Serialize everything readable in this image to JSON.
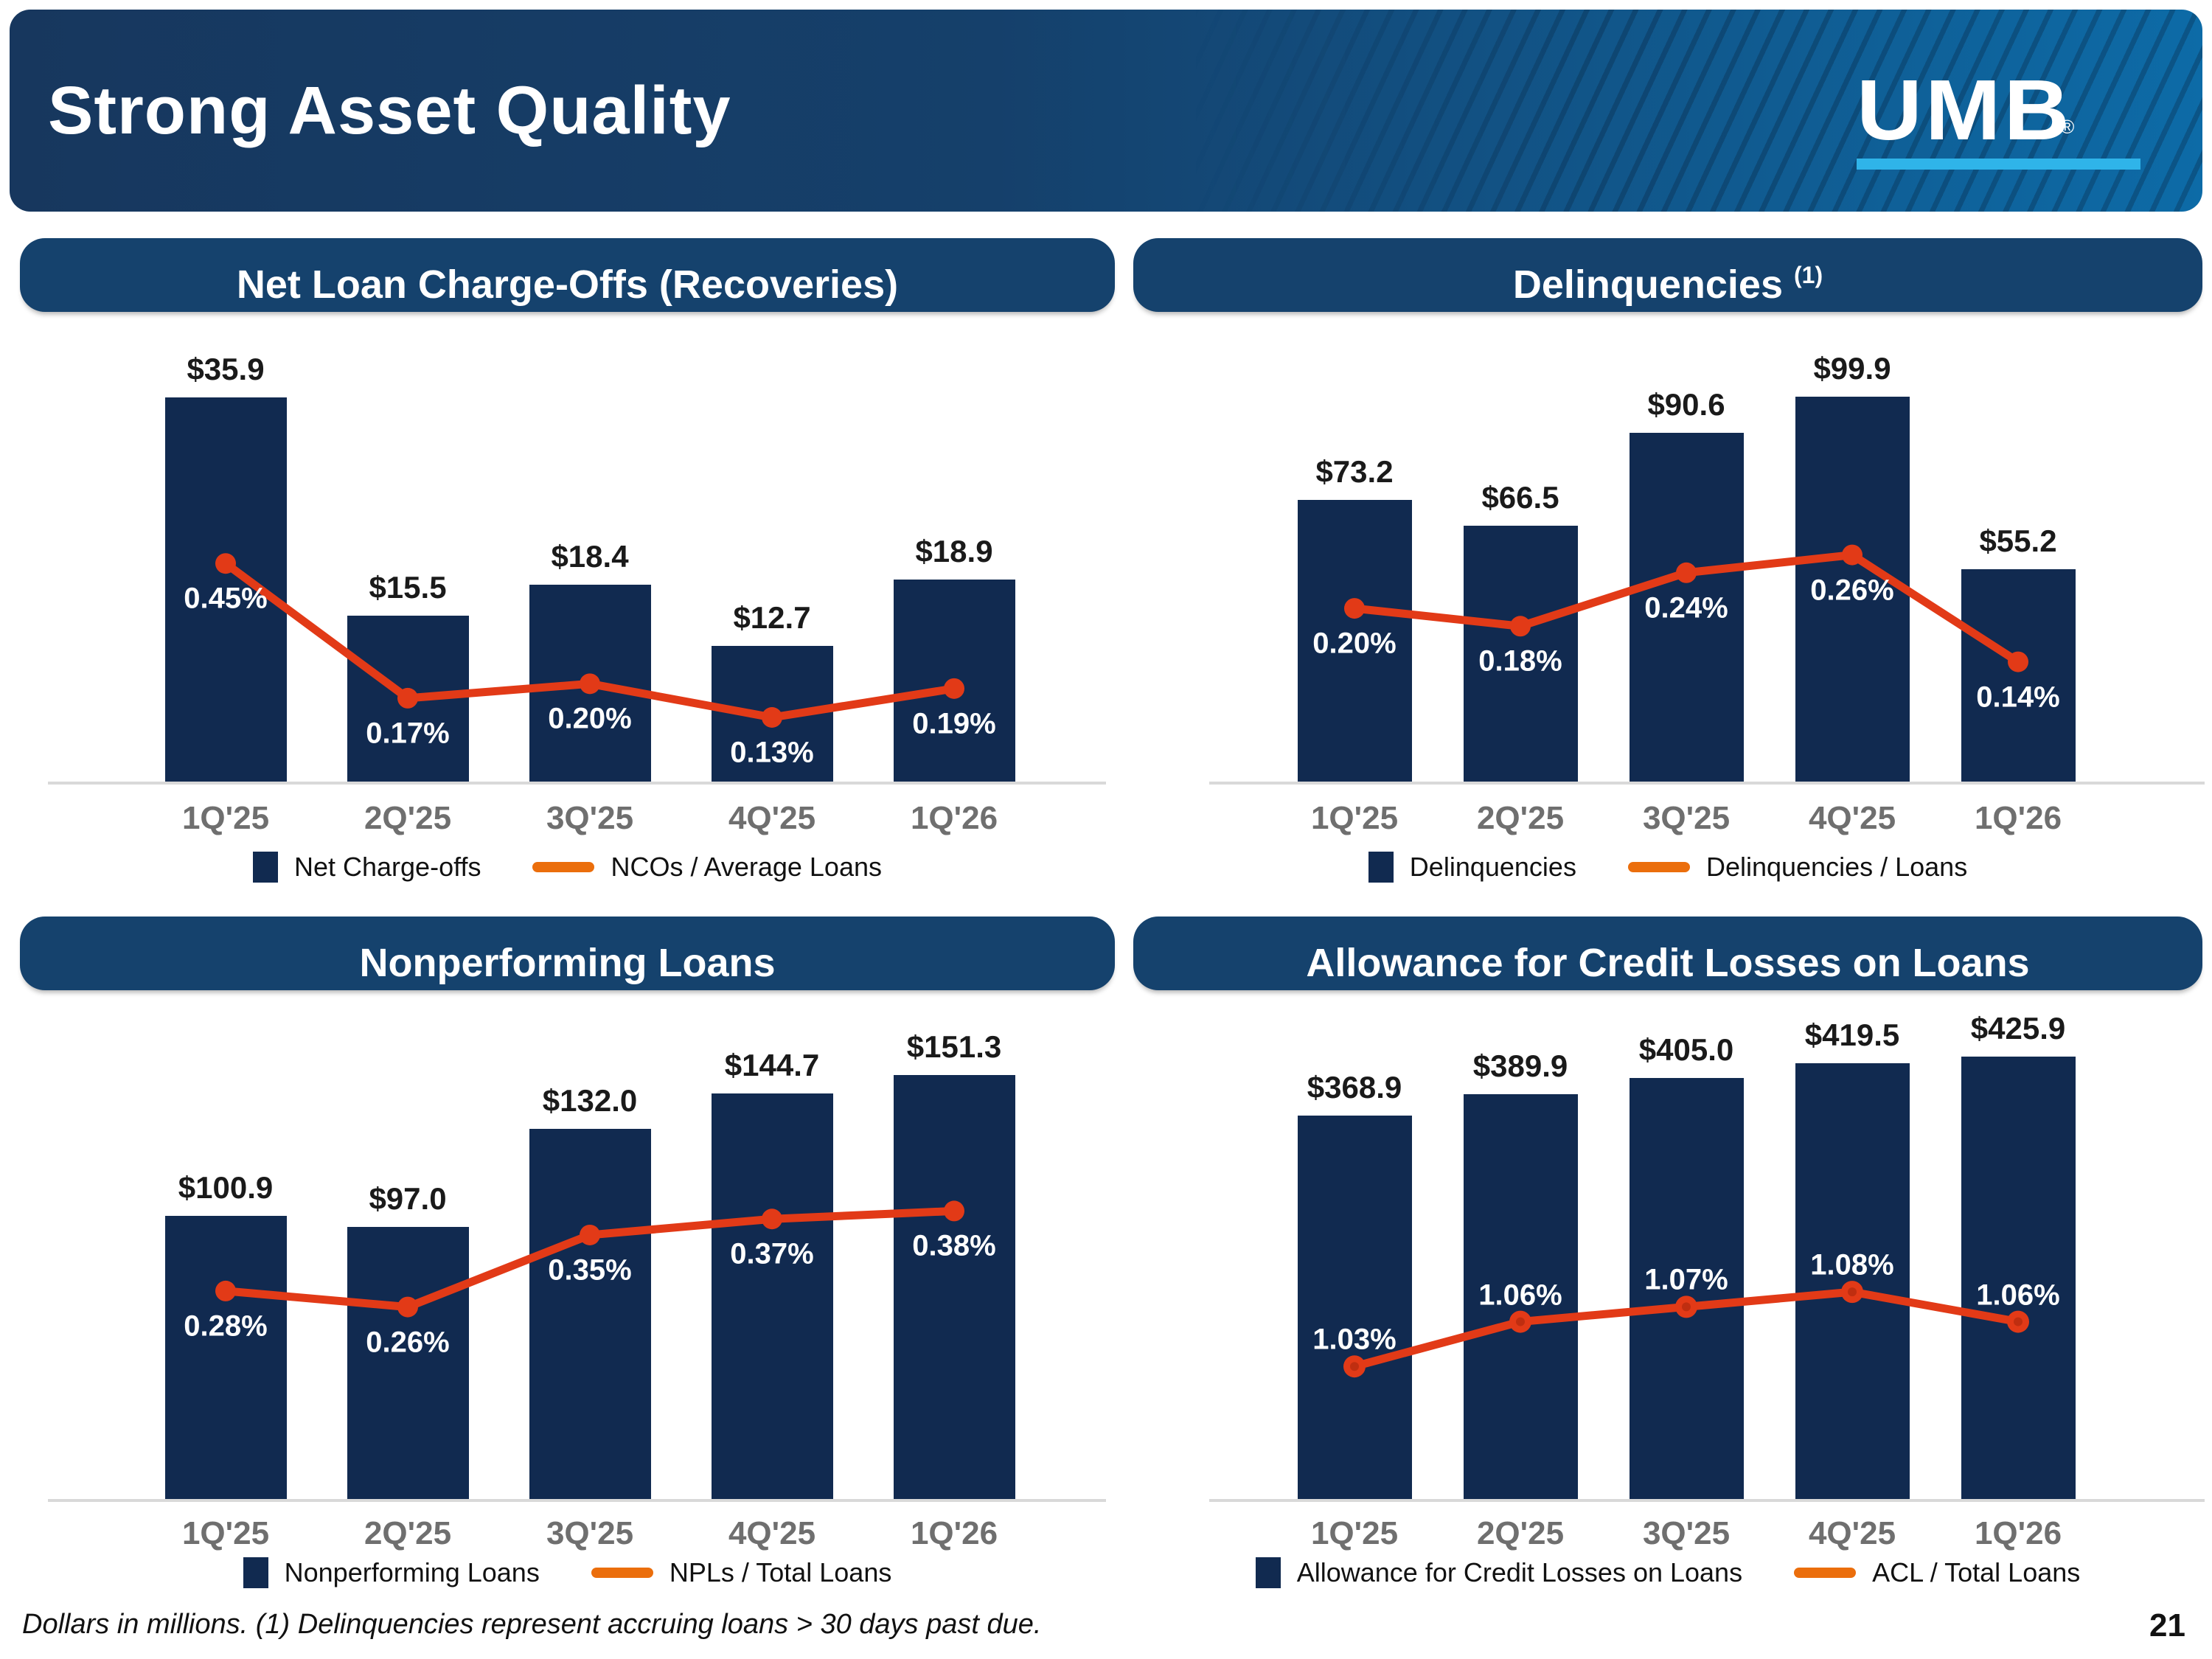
{
  "header": {
    "title": "Strong Asset Quality",
    "logo_text": "UMB",
    "logo_registered": "®"
  },
  "footer": {
    "note": "Dollars in millions. (1) Delinquencies represent accruing loans > 30 days past due.",
    "page_number": "21"
  },
  "colors": {
    "header_left": "#17375e",
    "header_right": "#0d6ba7",
    "banner": "#15426d",
    "bar": "#112a50",
    "line": "#e23a17",
    "line_marker_core": "#bf2e10",
    "legend_line": "#eb6e0c",
    "logo_underline": "#2fb4e9",
    "baseline": "#d9d9d9",
    "axis_label": "#6f6f6f"
  },
  "chart_data": [
    {
      "type": "combo-bar-line",
      "title": "Net Loan Charge-Offs (Recoveries)",
      "title_superscript": "",
      "categories": [
        "1Q'25",
        "2Q'25",
        "3Q'25",
        "4Q'25",
        "1Q'26"
      ],
      "series": [
        {
          "name": "Net Charge-offs",
          "type": "bar",
          "unit": "$ millions",
          "values": [
            35.9,
            15.5,
            18.4,
            12.7,
            18.9
          ],
          "labels": [
            "$35.9",
            "$15.5",
            "$18.4",
            "$12.7",
            "$18.9"
          ]
        },
        {
          "name": "NCOs / Average Loans",
          "type": "line",
          "unit": "%",
          "values": [
            0.45,
            0.17,
            0.2,
            0.13,
            0.19
          ],
          "labels": [
            "0.45%",
            "0.17%",
            "0.20%",
            "0.13%",
            "0.19%"
          ]
        }
      ],
      "layout": {
        "bar_axis_max": 40,
        "grid": false,
        "legend_position": "bottom",
        "line_map": {
          "pct_min": 0.13,
          "frac_min": 0.15,
          "pct_max": 0.45,
          "frac_max": 0.51
        },
        "pct_label_offset": 48
      }
    },
    {
      "type": "combo-bar-line",
      "title": "Delinquencies",
      "title_superscript": "(1)",
      "categories": [
        "1Q'25",
        "2Q'25",
        "3Q'25",
        "4Q'25",
        "1Q'26"
      ],
      "series": [
        {
          "name": "Delinquencies",
          "type": "bar",
          "unit": "$ millions",
          "values": [
            73.2,
            66.5,
            90.6,
            99.9,
            55.2
          ],
          "labels": [
            "$73.2",
            "$66.5",
            "$90.6",
            "$99.9",
            "$55.2"
          ]
        },
        {
          "name": "Delinquencies / Loans",
          "type": "line",
          "unit": "%",
          "values": [
            0.2,
            0.18,
            0.24,
            0.26,
            0.14
          ],
          "labels": [
            "0.20%",
            "0.18%",
            "0.24%",
            "0.26%",
            "0.14%"
          ]
        }
      ],
      "layout": {
        "bar_axis_max": 111,
        "grid": false,
        "legend_position": "bottom",
        "line_map": {
          "pct_min": 0.14,
          "frac_min": 0.28,
          "pct_max": 0.26,
          "frac_max": 0.53
        },
        "pct_label_offset": 48
      }
    },
    {
      "type": "combo-bar-line",
      "title": "Nonperforming Loans",
      "title_superscript": "",
      "categories": [
        "1Q'25",
        "2Q'25",
        "3Q'25",
        "4Q'25",
        "1Q'26"
      ],
      "series": [
        {
          "name": "Nonperforming Loans",
          "type": "bar",
          "unit": "$ millions",
          "values": [
            100.9,
            97.0,
            132.0,
            144.7,
            151.3
          ],
          "labels": [
            "$100.9",
            "$97.0",
            "$132.0",
            "$144.7",
            "$151.3"
          ]
        },
        {
          "name": "NPLs / Total Loans",
          "type": "line",
          "unit": "%",
          "values": [
            0.28,
            0.26,
            0.35,
            0.37,
            0.38
          ],
          "labels": [
            "0.28%",
            "0.26%",
            "0.35%",
            "0.37%",
            "0.38%"
          ]
        }
      ],
      "layout": {
        "bar_axis_max": 163,
        "grid": false,
        "legend_position": "bottom",
        "line_map": {
          "pct_min": 0.26,
          "frac_min": 0.42,
          "pct_max": 0.38,
          "frac_max": 0.63
        },
        "pct_label_offset": 48
      }
    },
    {
      "type": "combo-bar-line",
      "title": "Allowance for Credit Losses on Loans",
      "title_superscript": "",
      "categories": [
        "1Q'25",
        "2Q'25",
        "3Q'25",
        "4Q'25",
        "1Q'26"
      ],
      "series": [
        {
          "name": "Allowance for Credit Losses on Loans",
          "type": "bar",
          "unit": "$ millions",
          "values": [
            368.9,
            389.9,
            405.0,
            419.5,
            425.9
          ],
          "labels": [
            "$368.9",
            "$389.9",
            "$405.0",
            "$419.5",
            "$425.9"
          ]
        },
        {
          "name": "ACL / Total Loans",
          "type": "line",
          "unit": "%",
          "values": [
            1.03,
            1.06,
            1.07,
            1.08,
            1.06
          ],
          "labels": [
            "1.03%",
            "1.06%",
            "1.07%",
            "1.08%",
            "1.06%"
          ]
        }
      ],
      "layout": {
        "bar_axis_max": 440,
        "grid": false,
        "legend_position": "bottom",
        "line_map": {
          "pct_min": 1.03,
          "frac_min": 0.29,
          "pct_max": 1.08,
          "frac_max": 0.453
        },
        "pct_label_offset": -36
      }
    }
  ]
}
